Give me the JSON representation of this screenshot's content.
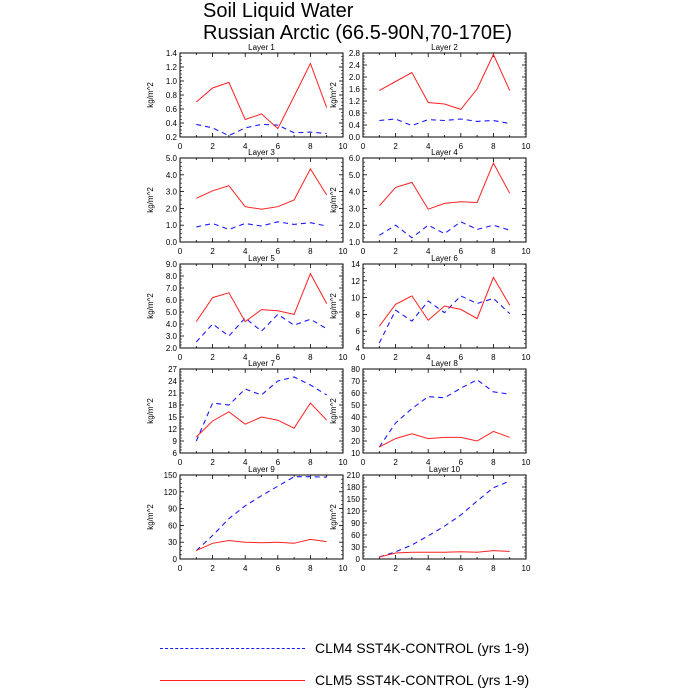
{
  "title": "Soil Liquid Water",
  "subtitle": "Russian Arctic (66.5-90N,70-170E)",
  "legend": [
    {
      "label": "CLM4 SST4K-CONTROL (yrs 1-9)",
      "color": "#1a1aff",
      "style": "dashed"
    },
    {
      "label": "CLM5 SST4K-CONTROL (yrs 1-9)",
      "color": "#ff2020",
      "style": "solid"
    }
  ],
  "chart_data": [
    {
      "type": "line",
      "title": "Layer 1",
      "ylabel": "kg/m^2",
      "xlim": [
        0,
        10
      ],
      "xticks": [
        0,
        2,
        4,
        6,
        8,
        10
      ],
      "ylim": [
        0.2,
        1.4
      ],
      "yticks": [
        0.2,
        0.4,
        0.6,
        0.8,
        1.0,
        1.2,
        1.4
      ],
      "ytick_labels": [
        "0.2",
        "0.4",
        "0.6",
        "0.8",
        "1.0",
        "1.2",
        "1.4"
      ],
      "x": [
        1,
        2,
        3,
        4,
        5,
        6,
        7,
        8,
        9
      ],
      "series": [
        {
          "name": "CLM4 SST4K-CONTROL (yrs 1-9)",
          "values": [
            0.38,
            0.33,
            0.22,
            0.33,
            0.38,
            0.37,
            0.26,
            0.27,
            0.25
          ]
        },
        {
          "name": "CLM5 SST4K-CONTROL (yrs 1-9)",
          "values": [
            0.7,
            0.9,
            0.98,
            0.45,
            0.53,
            0.32,
            0.78,
            1.25,
            0.62
          ]
        }
      ]
    },
    {
      "type": "line",
      "title": "Layer 2",
      "ylabel": "kg/m^2",
      "xlim": [
        0,
        10
      ],
      "xticks": [
        0,
        2,
        4,
        6,
        8,
        10
      ],
      "ylim": [
        0,
        2.8
      ],
      "yticks": [
        0,
        0.4,
        0.8,
        1.2,
        1.6,
        2.0,
        2.4,
        2.8
      ],
      "ytick_labels": [
        "0.0",
        "0.4",
        "0.8",
        "1.2",
        "1.6",
        "2.0",
        "2.4",
        "2.8"
      ],
      "x": [
        1,
        2,
        3,
        4,
        5,
        6,
        7,
        8,
        9
      ],
      "series": [
        {
          "name": "CLM4 SST4K-CONTROL (yrs 1-9)",
          "values": [
            0.55,
            0.6,
            0.38,
            0.58,
            0.55,
            0.6,
            0.52,
            0.55,
            0.45
          ]
        },
        {
          "name": "CLM5 SST4K-CONTROL (yrs 1-9)",
          "values": [
            1.55,
            1.85,
            2.15,
            1.15,
            1.1,
            0.92,
            1.6,
            2.75,
            1.55
          ]
        }
      ]
    },
    {
      "type": "line",
      "title": "Layer 3",
      "ylabel": "kg/m^2",
      "xlim": [
        0,
        10
      ],
      "xticks": [
        0,
        2,
        4,
        6,
        8,
        10
      ],
      "ylim": [
        0,
        5.0
      ],
      "yticks": [
        0,
        1,
        2,
        3,
        4,
        5
      ],
      "ytick_labels": [
        "0.0",
        "1.0",
        "2.0",
        "3.0",
        "4.0",
        "5.0"
      ],
      "x": [
        1,
        2,
        3,
        4,
        5,
        6,
        7,
        8,
        9
      ],
      "series": [
        {
          "name": "CLM4 SST4K-CONTROL (yrs 1-9)",
          "values": [
            0.9,
            1.1,
            0.75,
            1.1,
            0.95,
            1.2,
            1.05,
            1.15,
            0.95
          ]
        },
        {
          "name": "CLM5 SST4K-CONTROL (yrs 1-9)",
          "values": [
            2.6,
            3.05,
            3.35,
            2.1,
            1.95,
            2.1,
            2.5,
            4.35,
            2.8
          ]
        }
      ]
    },
    {
      "type": "line",
      "title": "Layer 4",
      "ylabel": "kg/m^2",
      "xlim": [
        0,
        10
      ],
      "xticks": [
        0,
        2,
        4,
        6,
        8,
        10
      ],
      "ylim": [
        1.0,
        6.0
      ],
      "yticks": [
        1,
        2,
        3,
        4,
        5,
        6
      ],
      "ytick_labels": [
        "1.0",
        "2.0",
        "3.0",
        "4.0",
        "5.0",
        "6.0"
      ],
      "x": [
        1,
        2,
        3,
        4,
        5,
        6,
        7,
        8,
        9
      ],
      "series": [
        {
          "name": "CLM4 SST4K-CONTROL (yrs 1-9)",
          "values": [
            1.4,
            2.0,
            1.25,
            2.0,
            1.5,
            2.2,
            1.75,
            2.0,
            1.7
          ]
        },
        {
          "name": "CLM5 SST4K-CONTROL (yrs 1-9)",
          "values": [
            3.15,
            4.25,
            4.55,
            2.95,
            3.3,
            3.4,
            3.35,
            5.7,
            3.9
          ]
        }
      ]
    },
    {
      "type": "line",
      "title": "Layer 5",
      "ylabel": "kg/m^2",
      "xlim": [
        0,
        10
      ],
      "xticks": [
        0,
        2,
        4,
        6,
        8,
        10
      ],
      "ylim": [
        2.0,
        9.0
      ],
      "yticks": [
        2,
        3,
        4,
        5,
        6,
        7,
        8,
        9
      ],
      "ytick_labels": [
        "2.0",
        "3.0",
        "4.0",
        "5.0",
        "6.0",
        "7.0",
        "8.0",
        "9.0"
      ],
      "x": [
        1,
        2,
        3,
        4,
        5,
        6,
        7,
        8,
        9
      ],
      "series": [
        {
          "name": "CLM4 SST4K-CONTROL (yrs 1-9)",
          "values": [
            2.5,
            4.0,
            3.0,
            4.5,
            3.4,
            4.8,
            3.9,
            4.4,
            3.6
          ]
        },
        {
          "name": "CLM5 SST4K-CONTROL (yrs 1-9)",
          "values": [
            4.2,
            6.2,
            6.6,
            4.2,
            5.2,
            5.1,
            4.8,
            8.2,
            5.7
          ]
        }
      ]
    },
    {
      "type": "line",
      "title": "Layer 6",
      "ylabel": "kg/m^2",
      "xlim": [
        0,
        10
      ],
      "xticks": [
        0,
        2,
        4,
        6,
        8,
        10
      ],
      "ylim": [
        4,
        14
      ],
      "yticks": [
        4,
        6,
        8,
        10,
        12,
        14
      ],
      "ytick_labels": [
        "4",
        "6",
        "8",
        "10",
        "12",
        "14"
      ],
      "x": [
        1,
        2,
        3,
        4,
        5,
        6,
        7,
        8,
        9
      ],
      "series": [
        {
          "name": "CLM4 SST4K-CONTROL (yrs 1-9)",
          "values": [
            4.6,
            8.5,
            7.2,
            9.6,
            8.2,
            10.2,
            9.3,
            9.9,
            8.1
          ]
        },
        {
          "name": "CLM5 SST4K-CONTROL (yrs 1-9)",
          "values": [
            6.6,
            9.2,
            10.2,
            7.3,
            9.0,
            8.6,
            7.5,
            12.4,
            9.1
          ]
        }
      ]
    },
    {
      "type": "line",
      "title": "Layer 7",
      "ylabel": "kg/m^2",
      "xlim": [
        0,
        10
      ],
      "xticks": [
        0,
        2,
        4,
        6,
        8,
        10
      ],
      "ylim": [
        6,
        27
      ],
      "yticks": [
        6,
        9,
        12,
        15,
        18,
        21,
        24,
        27
      ],
      "ytick_labels": [
        "6",
        "9",
        "12",
        "15",
        "18",
        "21",
        "24",
        "27"
      ],
      "x": [
        1,
        2,
        3,
        4,
        5,
        6,
        7,
        8,
        9
      ],
      "series": [
        {
          "name": "CLM4 SST4K-CONTROL (yrs 1-9)",
          "values": [
            9.0,
            18.5,
            18.0,
            22.0,
            20.5,
            24.0,
            25.0,
            23.0,
            20.5
          ]
        },
        {
          "name": "CLM5 SST4K-CONTROL (yrs 1-9)",
          "values": [
            10.0,
            14.0,
            16.3,
            13.2,
            15.0,
            14.2,
            12.2,
            18.5,
            14.2
          ]
        }
      ]
    },
    {
      "type": "line",
      "title": "Layer 8",
      "ylabel": "kg/m^2",
      "xlim": [
        0,
        10
      ],
      "xticks": [
        0,
        2,
        4,
        6,
        8,
        10
      ],
      "ylim": [
        10,
        80
      ],
      "yticks": [
        10,
        20,
        30,
        40,
        50,
        60,
        70,
        80
      ],
      "ytick_labels": [
        "10",
        "20",
        "30",
        "40",
        "50",
        "60",
        "70",
        "80"
      ],
      "x": [
        1,
        2,
        3,
        4,
        5,
        6,
        7,
        8,
        9
      ],
      "series": [
        {
          "name": "CLM4 SST4K-CONTROL (yrs 1-9)",
          "values": [
            15,
            35,
            47,
            57,
            56,
            64,
            71,
            61,
            59
          ]
        },
        {
          "name": "CLM5 SST4K-CONTROL (yrs 1-9)",
          "values": [
            15,
            22,
            26,
            22,
            23,
            23,
            20,
            28,
            23
          ]
        }
      ]
    },
    {
      "type": "line",
      "title": "Layer 9",
      "ylabel": "kg/m^2",
      "xlim": [
        0,
        10
      ],
      "xticks": [
        0,
        2,
        4,
        6,
        8,
        10
      ],
      "ylim": [
        0,
        150
      ],
      "yticks": [
        0,
        30,
        60,
        90,
        120,
        150
      ],
      "ytick_labels": [
        "0",
        "30",
        "60",
        "90",
        "120",
        "150"
      ],
      "x": [
        1,
        2,
        3,
        4,
        5,
        6,
        7,
        8,
        9
      ],
      "series": [
        {
          "name": "CLM4 SST4K-CONTROL (yrs 1-9)",
          "values": [
            15,
            42,
            72,
            95,
            113,
            130,
            147,
            147,
            146
          ]
        },
        {
          "name": "CLM5 SST4K-CONTROL (yrs 1-9)",
          "values": [
            15,
            28,
            33,
            30,
            29,
            30,
            28,
            35,
            31
          ]
        }
      ]
    },
    {
      "type": "line",
      "title": "Layer 10",
      "ylabel": "kg/m^2",
      "xlim": [
        0,
        10
      ],
      "xticks": [
        0,
        2,
        4,
        6,
        8,
        10
      ],
      "ylim": [
        0,
        210
      ],
      "yticks": [
        0,
        30,
        60,
        90,
        120,
        150,
        180,
        210
      ],
      "ytick_labels": [
        "0",
        "30",
        "60",
        "90",
        "120",
        "150",
        "180",
        "210"
      ],
      "x": [
        1,
        2,
        3,
        4,
        5,
        6,
        7,
        8,
        9
      ],
      "series": [
        {
          "name": "CLM4 SST4K-CONTROL (yrs 1-9)",
          "values": [
            5,
            18,
            35,
            58,
            82,
            110,
            145,
            178,
            195
          ]
        },
        {
          "name": "CLM5 SST4K-CONTROL (yrs 1-9)",
          "values": [
            5,
            15,
            17,
            17,
            17,
            18,
            17,
            21,
            19
          ]
        }
      ]
    }
  ]
}
